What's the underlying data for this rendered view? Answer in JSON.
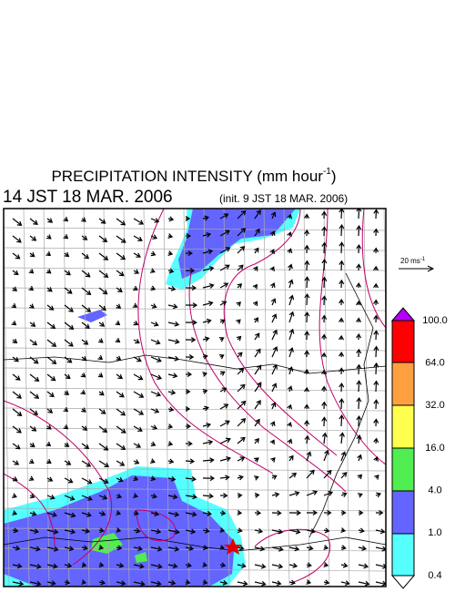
{
  "header": {
    "title": "PRECIPITATION INTENSITY (mm hour",
    "title_exponent": "-1",
    "title_close": ")",
    "time": "14 JST 18 MAR. 2006",
    "init": "(init. 9 JST 18 MAR. 2006)"
  },
  "reference_vector": {
    "label": "20 ms",
    "exponent": "-1"
  },
  "colorbar": {
    "labels": [
      "100.0",
      "64.0",
      "32.0",
      "16.0",
      "4.0",
      "1.0",
      "0.4"
    ]
  }
}
